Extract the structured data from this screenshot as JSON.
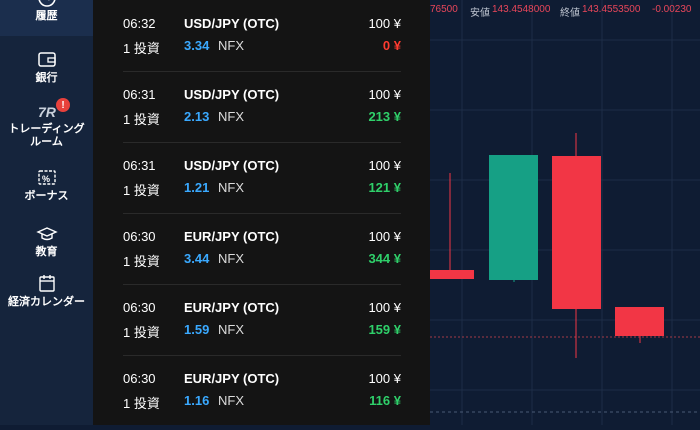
{
  "nav": {
    "items": [
      {
        "label": "履歴",
        "icon": "history-icon"
      },
      {
        "label": "銀行",
        "icon": "wallet-icon"
      },
      {
        "label": "トレーディング\nルーム",
        "icon": "trading-room-icon"
      },
      {
        "label": "ボーナス",
        "icon": "bonus-icon"
      },
      {
        "label": "教育",
        "icon": "graduation-cap-icon"
      },
      {
        "label": "経済カレンダー",
        "icon": "calendar-icon"
      }
    ],
    "badge": "!"
  },
  "trades": [
    {
      "time": "06:32",
      "pair": "USD/JPY (OTC)",
      "amount": "100 ¥",
      "investments": "1 投資",
      "rate": "3.34",
      "currency": "NFX",
      "profit": "0 ¥",
      "result": "zero"
    },
    {
      "time": "06:31",
      "pair": "USD/JPY (OTC)",
      "amount": "100 ¥",
      "investments": "1 投資",
      "rate": "2.13",
      "currency": "NFX",
      "profit": "213 ¥",
      "result": "win"
    },
    {
      "time": "06:31",
      "pair": "USD/JPY (OTC)",
      "amount": "100 ¥",
      "investments": "1 投資",
      "rate": "1.21",
      "currency": "NFX",
      "profit": "121 ¥",
      "result": "win"
    },
    {
      "time": "06:30",
      "pair": "EUR/JPY (OTC)",
      "amount": "100 ¥",
      "investments": "1 投資",
      "rate": "3.44",
      "currency": "NFX",
      "profit": "344 ¥",
      "result": "win"
    },
    {
      "time": "06:30",
      "pair": "EUR/JPY (OTC)",
      "amount": "100 ¥",
      "investments": "1 投資",
      "rate": "1.59",
      "currency": "NFX",
      "profit": "159 ¥",
      "result": "win"
    },
    {
      "time": "06:30",
      "pair": "EUR/JPY (OTC)",
      "amount": "100 ¥",
      "investments": "1 投資",
      "rate": "1.16",
      "currency": "NFX",
      "profit": "116 ¥",
      "result": "win"
    }
  ],
  "chart_header": {
    "partial_value": "76500",
    "low_label": "安値",
    "low_value": "143.4548000",
    "close_label": "終値",
    "close_value": "143.4553500",
    "change": "-0.00230"
  },
  "colors": {
    "up": "#16a085",
    "down": "#f23645",
    "profit": "#2fd06a",
    "accent": "#3aa9ff"
  }
}
